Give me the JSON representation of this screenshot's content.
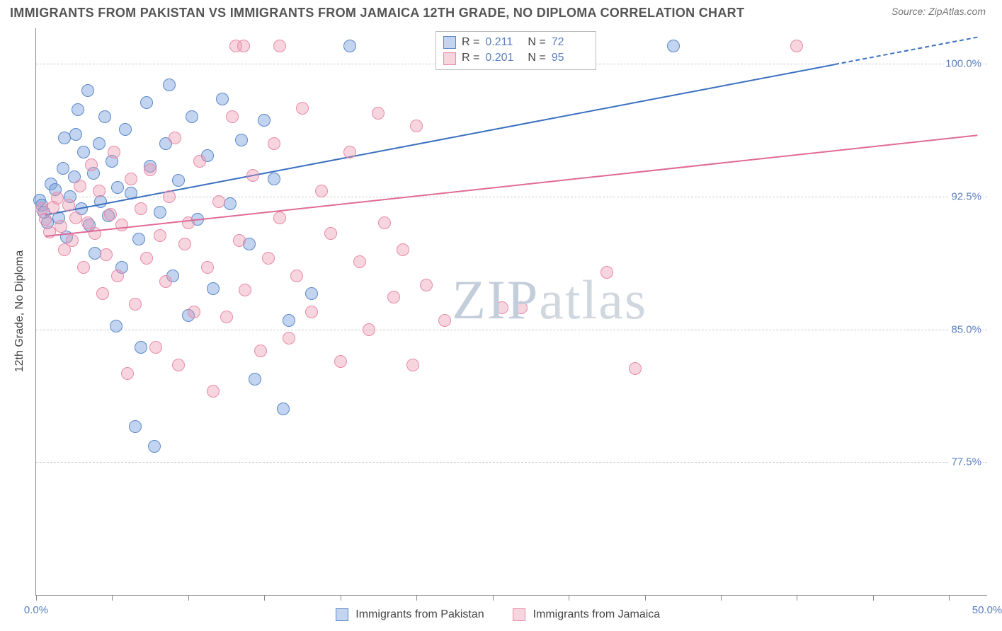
{
  "header": {
    "title": "IMMIGRANTS FROM PAKISTAN VS IMMIGRANTS FROM JAMAICA 12TH GRADE, NO DIPLOMA CORRELATION CHART",
    "source": "Source: ZipAtlas.com"
  },
  "watermark": {
    "text_a": "ZIP",
    "text_b": "atlas"
  },
  "chart": {
    "type": "scatter",
    "ylabel": "12th Grade, No Diploma",
    "background_color": "#ffffff",
    "grid_color": "#cccccc",
    "axis_color": "#888888",
    "xlim": [
      0,
      50
    ],
    "ylim": [
      70,
      102
    ],
    "yticks": [
      {
        "v": 77.5,
        "label": "77.5%"
      },
      {
        "v": 85.0,
        "label": "85.0%"
      },
      {
        "v": 92.5,
        "label": "92.5%"
      },
      {
        "v": 100.0,
        "label": "100.0%"
      }
    ],
    "xticks_minor": [
      0,
      4,
      8,
      12,
      16,
      20,
      24,
      28,
      32,
      36,
      40,
      44,
      48
    ],
    "xlabels": [
      {
        "v": 0,
        "label": "0.0%"
      },
      {
        "v": 50,
        "label": "50.0%"
      }
    ],
    "series": [
      {
        "name": "Immigrants from Pakistan",
        "color_fill": "rgba(120,160,220,0.45)",
        "color_stroke": "#5a88c8",
        "color_solid": "#3a6fc0",
        "color_hex": "#7aa6de",
        "marker_radius": 9,
        "R": "0.211",
        "N": "72",
        "trend": {
          "x1": 0.5,
          "y1": 91.5,
          "x2": 42,
          "y2": 100.0,
          "dash_x2": 49.5
        },
        "points": [
          [
            0.2,
            92.3
          ],
          [
            0.3,
            92.0
          ],
          [
            0.4,
            91.6
          ],
          [
            0.6,
            91.0
          ],
          [
            0.8,
            93.2
          ],
          [
            1.0,
            92.9
          ],
          [
            1.2,
            91.3
          ],
          [
            1.4,
            94.1
          ],
          [
            1.5,
            95.8
          ],
          [
            1.6,
            90.2
          ],
          [
            1.8,
            92.5
          ],
          [
            2.0,
            93.6
          ],
          [
            2.1,
            96.0
          ],
          [
            2.2,
            97.4
          ],
          [
            2.4,
            91.8
          ],
          [
            2.5,
            95.0
          ],
          [
            2.7,
            98.5
          ],
          [
            2.8,
            90.9
          ],
          [
            3.0,
            93.8
          ],
          [
            3.1,
            89.3
          ],
          [
            3.3,
            95.5
          ],
          [
            3.4,
            92.2
          ],
          [
            3.6,
            97.0
          ],
          [
            3.8,
            91.4
          ],
          [
            4.0,
            94.5
          ],
          [
            4.2,
            85.2
          ],
          [
            4.3,
            93.0
          ],
          [
            4.5,
            88.5
          ],
          [
            4.7,
            96.3
          ],
          [
            5.0,
            92.7
          ],
          [
            5.2,
            79.5
          ],
          [
            5.4,
            90.1
          ],
          [
            5.5,
            84.0
          ],
          [
            5.8,
            97.8
          ],
          [
            6.0,
            94.2
          ],
          [
            6.2,
            78.4
          ],
          [
            6.5,
            91.6
          ],
          [
            6.8,
            95.5
          ],
          [
            7.0,
            98.8
          ],
          [
            7.2,
            88.0
          ],
          [
            7.5,
            93.4
          ],
          [
            8.0,
            85.8
          ],
          [
            8.2,
            97.0
          ],
          [
            8.5,
            91.2
          ],
          [
            9.0,
            94.8
          ],
          [
            9.3,
            87.3
          ],
          [
            9.8,
            98.0
          ],
          [
            10.2,
            92.1
          ],
          [
            10.8,
            95.7
          ],
          [
            11.2,
            89.8
          ],
          [
            11.5,
            82.2
          ],
          [
            12.0,
            96.8
          ],
          [
            12.5,
            93.5
          ],
          [
            13.0,
            80.5
          ],
          [
            13.3,
            85.5
          ],
          [
            14.5,
            87.0
          ],
          [
            16.5,
            101.0
          ],
          [
            33.5,
            101.0
          ]
        ]
      },
      {
        "name": "Immigrants from Jamaica",
        "color_fill": "rgba(235,150,175,0.40)",
        "color_stroke": "#e88aa8",
        "color_solid": "#e06a96",
        "color_hex": "#f0a8be",
        "marker_radius": 9,
        "R": "0.201",
        "N": "95",
        "trend": {
          "x1": 0.5,
          "y1": 90.3,
          "x2": 49.5,
          "y2": 96.0
        },
        "points": [
          [
            0.3,
            91.8
          ],
          [
            0.5,
            91.2
          ],
          [
            0.7,
            90.5
          ],
          [
            0.9,
            91.9
          ],
          [
            1.1,
            92.4
          ],
          [
            1.3,
            90.8
          ],
          [
            1.5,
            89.5
          ],
          [
            1.7,
            92.0
          ],
          [
            1.9,
            90.0
          ],
          [
            2.1,
            91.3
          ],
          [
            2.3,
            93.1
          ],
          [
            2.5,
            88.5
          ],
          [
            2.7,
            91.0
          ],
          [
            2.9,
            94.3
          ],
          [
            3.1,
            90.4
          ],
          [
            3.3,
            92.8
          ],
          [
            3.5,
            87.0
          ],
          [
            3.7,
            89.2
          ],
          [
            3.9,
            91.5
          ],
          [
            4.1,
            95.0
          ],
          [
            4.3,
            88.0
          ],
          [
            4.5,
            90.9
          ],
          [
            4.8,
            82.5
          ],
          [
            5.0,
            93.5
          ],
          [
            5.2,
            86.4
          ],
          [
            5.5,
            91.8
          ],
          [
            5.8,
            89.0
          ],
          [
            6.0,
            94.0
          ],
          [
            6.3,
            84.0
          ],
          [
            6.5,
            90.3
          ],
          [
            6.8,
            87.7
          ],
          [
            7.0,
            92.5
          ],
          [
            7.3,
            95.8
          ],
          [
            7.5,
            83.0
          ],
          [
            7.8,
            89.8
          ],
          [
            8.0,
            91.0
          ],
          [
            8.3,
            86.0
          ],
          [
            8.6,
            94.5
          ],
          [
            9.0,
            88.5
          ],
          [
            9.3,
            81.5
          ],
          [
            9.6,
            92.2
          ],
          [
            10.0,
            85.7
          ],
          [
            10.3,
            97.0
          ],
          [
            10.7,
            90.0
          ],
          [
            10.5,
            101.0
          ],
          [
            10.9,
            101.0
          ],
          [
            11.0,
            87.2
          ],
          [
            11.4,
            93.7
          ],
          [
            11.8,
            83.8
          ],
          [
            12.2,
            89.0
          ],
          [
            12.5,
            95.5
          ],
          [
            12.8,
            91.3
          ],
          [
            13.3,
            84.5
          ],
          [
            12.8,
            101.0
          ],
          [
            13.7,
            88.0
          ],
          [
            14.0,
            97.5
          ],
          [
            14.5,
            86.0
          ],
          [
            15.0,
            92.8
          ],
          [
            15.5,
            90.4
          ],
          [
            16.0,
            83.2
          ],
          [
            16.5,
            95.0
          ],
          [
            17.0,
            88.8
          ],
          [
            17.5,
            85.0
          ],
          [
            18.0,
            97.2
          ],
          [
            18.3,
            91.0
          ],
          [
            18.8,
            86.8
          ],
          [
            19.3,
            89.5
          ],
          [
            20.0,
            96.5
          ],
          [
            19.8,
            83.0
          ],
          [
            20.5,
            87.5
          ],
          [
            21.5,
            85.5
          ],
          [
            24.5,
            86.2
          ],
          [
            25.5,
            86.2
          ],
          [
            30.0,
            88.2
          ],
          [
            31.5,
            82.8
          ],
          [
            40.0,
            101.0
          ]
        ]
      }
    ],
    "legend_bottom": [
      {
        "label": "Immigrants from Pakistan",
        "fill": "rgba(120,160,220,0.45)",
        "stroke": "#5a88c8"
      },
      {
        "label": "Immigrants from Jamaica",
        "fill": "rgba(235,150,175,0.40)",
        "stroke": "#e88aa8"
      }
    ]
  }
}
